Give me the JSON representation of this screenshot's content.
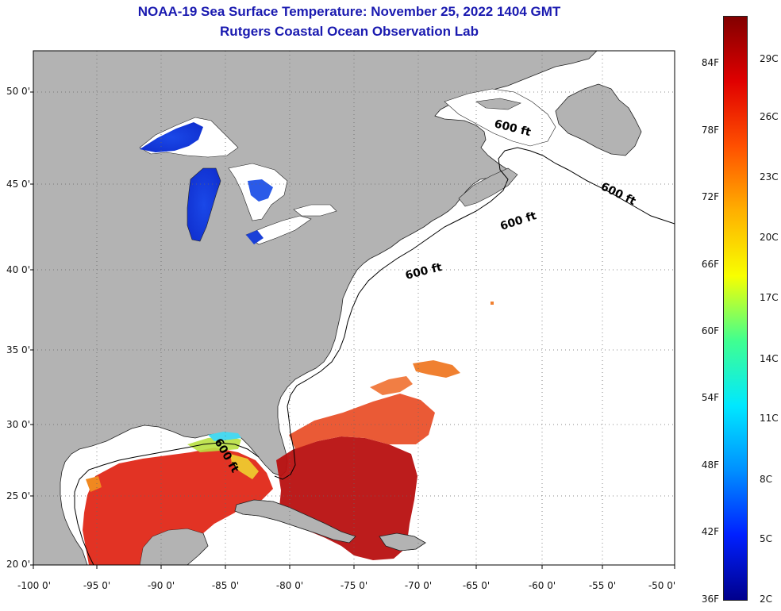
{
  "titles": {
    "line1": "NOAA-19 Sea Surface Temperature:  November 25, 2022 1404 GMT",
    "line2": "Rutgers Coastal Ocean Observation Lab"
  },
  "map": {
    "lon_range": [
      -100,
      -50
    ],
    "lat_range": [
      20,
      52.5
    ],
    "grid": true,
    "lat_ticks": [
      {
        "value": 50,
        "label": "50 0'"
      },
      {
        "value": 45,
        "label": "45 0'"
      },
      {
        "value": 40,
        "label": "40 0'"
      },
      {
        "value": 35,
        "label": "35 0'"
      },
      {
        "value": 30,
        "label": "30 0'"
      },
      {
        "value": 25,
        "label": "25 0'"
      },
      {
        "value": 20,
        "label": "20 0'"
      }
    ],
    "lon_ticks": [
      {
        "value": -100,
        "label": "-100 0'"
      },
      {
        "value": -95,
        "label": "-95 0'"
      },
      {
        "value": -90,
        "label": "-90 0'"
      },
      {
        "value": -85,
        "label": "-85 0'"
      },
      {
        "value": -80,
        "label": "-80 0'"
      },
      {
        "value": -75,
        "label": "-75 0'"
      },
      {
        "value": -70,
        "label": "-70 0'"
      },
      {
        "value": -65,
        "label": "-65 0'"
      },
      {
        "value": -60,
        "label": "-60 0'"
      },
      {
        "value": -55,
        "label": "-55 0'"
      },
      {
        "value": -50,
        "label": "-50 0'"
      }
    ],
    "contour_labels": [
      "600 ft",
      "600 ft",
      "600 ft",
      "600 ft",
      "600 ft"
    ],
    "colors": {
      "land": "#b3b3b3",
      "no_data_water": "#ffffff",
      "contour": "#000000",
      "grid": "#666666"
    }
  },
  "colorbar": {
    "min_f": 36,
    "max_f": 88,
    "min_c": 2,
    "max_c": 31,
    "f_ticks": [
      {
        "value": 84,
        "label": "84F"
      },
      {
        "value": 78,
        "label": "78F"
      },
      {
        "value": 72,
        "label": "72F"
      },
      {
        "value": 66,
        "label": "66F"
      },
      {
        "value": 60,
        "label": "60F"
      },
      {
        "value": 54,
        "label": "54F"
      },
      {
        "value": 48,
        "label": "48F"
      },
      {
        "value": 42,
        "label": "42F"
      },
      {
        "value": 36,
        "label": "36F"
      }
    ],
    "c_ticks": [
      {
        "value": 29,
        "label": "29C"
      },
      {
        "value": 26,
        "label": "26C"
      },
      {
        "value": 23,
        "label": "23C"
      },
      {
        "value": 20,
        "label": "20C"
      },
      {
        "value": 17,
        "label": "17C"
      },
      {
        "value": 14,
        "label": "14C"
      },
      {
        "value": 11,
        "label": "11C"
      },
      {
        "value": 8,
        "label": "8C"
      },
      {
        "value": 5,
        "label": "5C"
      },
      {
        "value": 2,
        "label": "2C"
      }
    ],
    "gradient_stops": [
      "#00008c",
      "#0020ff",
      "#0090ff",
      "#00e8ff",
      "#40ff90",
      "#f8ff00",
      "#ffb000",
      "#ff5000",
      "#e00000",
      "#820000"
    ]
  }
}
